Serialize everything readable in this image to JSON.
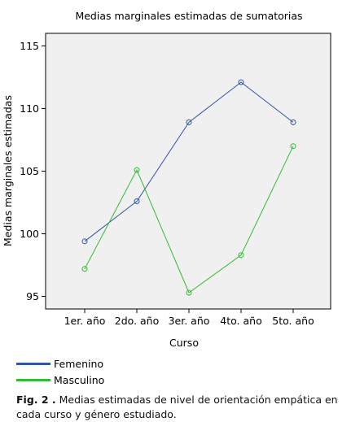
{
  "chart_data": {
    "type": "line",
    "title": "Medias marginales estimadas de sumatorias",
    "xlabel": "Curso",
    "ylabel": "Medias marginales estimadas",
    "categories": [
      "1er. año",
      "2do. año",
      "3er. año",
      "4to. año",
      "5to. año"
    ],
    "ylim": [
      94,
      116
    ],
    "yticks": [
      95,
      100,
      105,
      110,
      115
    ],
    "grid": false,
    "legend_position": "bottom-left",
    "series": [
      {
        "name": "Femenino",
        "color": "#3355a8",
        "values": [
          99.4,
          102.6,
          108.9,
          112.1,
          108.9
        ]
      },
      {
        "name": "Masculino",
        "color": "#33bb33",
        "values": [
          97.2,
          105.1,
          95.3,
          98.3,
          107.0
        ]
      }
    ]
  },
  "caption": {
    "label": "Fig. 2 .",
    "text": " Medias  estimadas de nivel de orientación empática en cada curso y género estudiado."
  }
}
